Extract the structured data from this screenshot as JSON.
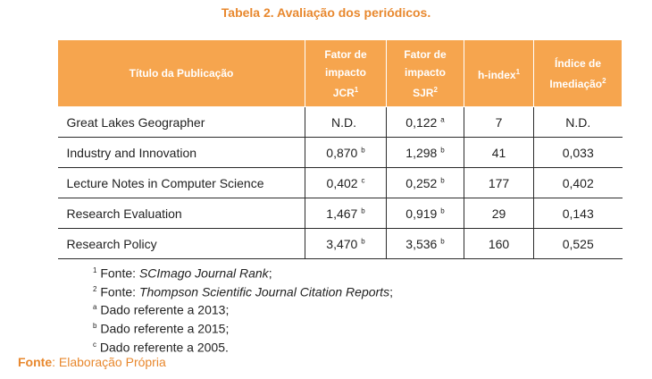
{
  "caption": "Tabela 2. Avaliação dos periódicos.",
  "table": {
    "headers": {
      "title": "Título da Publicação",
      "jcr_line1": "Fator de",
      "jcr_line2": "impacto",
      "jcr_line3": "JCR",
      "jcr_sup": "1",
      "sjr_line1": "Fator de",
      "sjr_line2": "impacto",
      "sjr_line3": "SJR",
      "sjr_sup": "2",
      "h_index": "h-index",
      "h_index_sup": "1",
      "immediacy_line1": "Índice de",
      "immediacy_line2": "Imediação",
      "immediacy_sup": "2"
    },
    "rows": [
      {
        "title": "Great Lakes Geographer",
        "jcr": "N.D.",
        "jcr_sup": "",
        "sjr": "0,122",
        "sjr_sup": "a",
        "h_index": "7",
        "immediacy": "N.D."
      },
      {
        "title": "Industry and Innovation",
        "jcr": "0,870",
        "jcr_sup": "b",
        "sjr": "1,298",
        "sjr_sup": "b",
        "h_index": "41",
        "immediacy": "0,033"
      },
      {
        "title": "Lecture Notes in Computer Science",
        "jcr": "0,402",
        "jcr_sup": "c",
        "sjr": "0,252",
        "sjr_sup": "b",
        "h_index": "177",
        "immediacy": "0,402"
      },
      {
        "title": "Research Evaluation",
        "jcr": "1,467",
        "jcr_sup": "b",
        "sjr": "0,919",
        "sjr_sup": "b",
        "h_index": "29",
        "immediacy": "0,143"
      },
      {
        "title": "Research Policy",
        "jcr": "3,470",
        "jcr_sup": "b",
        "sjr": "3,536",
        "sjr_sup": "b",
        "h_index": "160",
        "immediacy": "0,525"
      }
    ]
  },
  "notes": [
    {
      "mark": "1",
      "prefix": "Fonte: ",
      "text": "SCImago Journal Rank",
      "suffix": ";"
    },
    {
      "mark": "2",
      "prefix": "Fonte: ",
      "text": "Thompson Scientific Journal Citation Reports",
      "suffix": ";"
    },
    {
      "mark": "a",
      "prefix": "Dado referente a 2013;",
      "text": "",
      "suffix": ""
    },
    {
      "mark": "b",
      "prefix": "Dado referente a 2015;",
      "text": "",
      "suffix": ""
    },
    {
      "mark": "c",
      "prefix": "Dado referente a 2005.",
      "text": "",
      "suffix": ""
    }
  ],
  "source": {
    "label": "Fonte",
    "text": ": Elaboração Própria"
  },
  "colors": {
    "accent": "#e8882e",
    "header_bg": "#f6a54e",
    "header_text": "#ffffff"
  }
}
